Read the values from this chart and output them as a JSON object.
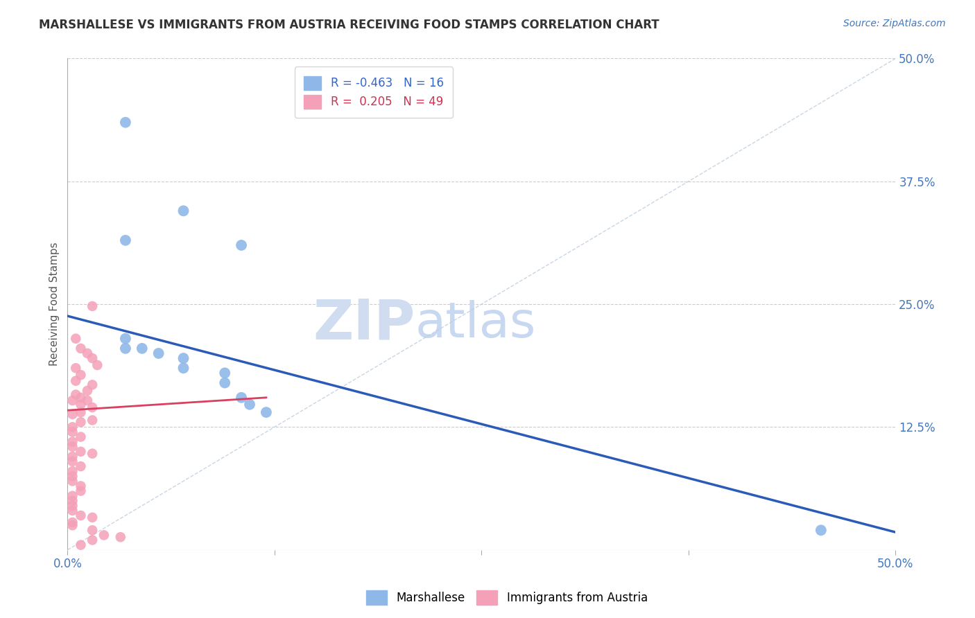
{
  "title": "MARSHALLESE VS IMMIGRANTS FROM AUSTRIA RECEIVING FOOD STAMPS CORRELATION CHART",
  "source": "Source: ZipAtlas.com",
  "ylabel": "Receiving Food Stamps",
  "xlim": [
    0.0,
    0.5
  ],
  "ylim": [
    0.0,
    0.5
  ],
  "xtick_labels": [
    "0.0%",
    "",
    "",
    "",
    "50.0%"
  ],
  "xtick_vals": [
    0.0,
    0.125,
    0.25,
    0.375,
    0.5
  ],
  "ytick_labels": [
    "50.0%",
    "37.5%",
    "25.0%",
    "12.5%"
  ],
  "ytick_vals": [
    0.5,
    0.375,
    0.25,
    0.125
  ],
  "legend_labels": [
    "Marshallese",
    "Immigrants from Austria"
  ],
  "R_marshallese": -0.463,
  "N_marshallese": 16,
  "R_austria": 0.205,
  "N_austria": 49,
  "blue_color": "#8FB8E8",
  "pink_color": "#F4A0B8",
  "blue_line_color": "#2B5BB8",
  "pink_line_color": "#D94060",
  "watermark_zip": "ZIP",
  "watermark_atlas": "atlas",
  "background_color": "#FFFFFF",
  "blue_line_x": [
    0.0,
    0.5
  ],
  "blue_line_y": [
    0.238,
    0.018
  ],
  "pink_line_x": [
    0.0,
    0.12
  ],
  "pink_line_y": [
    0.142,
    0.155
  ],
  "marshallese_points": [
    [
      0.035,
      0.435
    ],
    [
      0.07,
      0.345
    ],
    [
      0.105,
      0.31
    ],
    [
      0.035,
      0.315
    ],
    [
      0.035,
      0.215
    ],
    [
      0.035,
      0.205
    ],
    [
      0.045,
      0.205
    ],
    [
      0.055,
      0.2
    ],
    [
      0.07,
      0.195
    ],
    [
      0.07,
      0.185
    ],
    [
      0.095,
      0.18
    ],
    [
      0.095,
      0.17
    ],
    [
      0.105,
      0.155
    ],
    [
      0.11,
      0.148
    ],
    [
      0.12,
      0.14
    ],
    [
      0.455,
      0.02
    ]
  ],
  "austria_points": [
    [
      0.015,
      0.248
    ],
    [
      0.005,
      0.215
    ],
    [
      0.008,
      0.205
    ],
    [
      0.012,
      0.2
    ],
    [
      0.015,
      0.195
    ],
    [
      0.018,
      0.188
    ],
    [
      0.005,
      0.185
    ],
    [
      0.008,
      0.178
    ],
    [
      0.005,
      0.172
    ],
    [
      0.015,
      0.168
    ],
    [
      0.012,
      0.162
    ],
    [
      0.005,
      0.158
    ],
    [
      0.008,
      0.155
    ],
    [
      0.012,
      0.152
    ],
    [
      0.003,
      0.152
    ],
    [
      0.008,
      0.148
    ],
    [
      0.015,
      0.145
    ],
    [
      0.008,
      0.14
    ],
    [
      0.003,
      0.138
    ],
    [
      0.015,
      0.132
    ],
    [
      0.008,
      0.13
    ],
    [
      0.003,
      0.125
    ],
    [
      0.003,
      0.12
    ],
    [
      0.008,
      0.115
    ],
    [
      0.003,
      0.11
    ],
    [
      0.003,
      0.105
    ],
    [
      0.008,
      0.1
    ],
    [
      0.015,
      0.098
    ],
    [
      0.003,
      0.095
    ],
    [
      0.003,
      0.09
    ],
    [
      0.008,
      0.085
    ],
    [
      0.003,
      0.08
    ],
    [
      0.003,
      0.075
    ],
    [
      0.003,
      0.07
    ],
    [
      0.008,
      0.065
    ],
    [
      0.008,
      0.06
    ],
    [
      0.003,
      0.055
    ],
    [
      0.003,
      0.05
    ],
    [
      0.003,
      0.045
    ],
    [
      0.003,
      0.04
    ],
    [
      0.008,
      0.035
    ],
    [
      0.015,
      0.033
    ],
    [
      0.003,
      0.028
    ],
    [
      0.003,
      0.025
    ],
    [
      0.015,
      0.02
    ],
    [
      0.022,
      0.015
    ],
    [
      0.032,
      0.013
    ],
    [
      0.015,
      0.01
    ],
    [
      0.008,
      0.005
    ]
  ]
}
